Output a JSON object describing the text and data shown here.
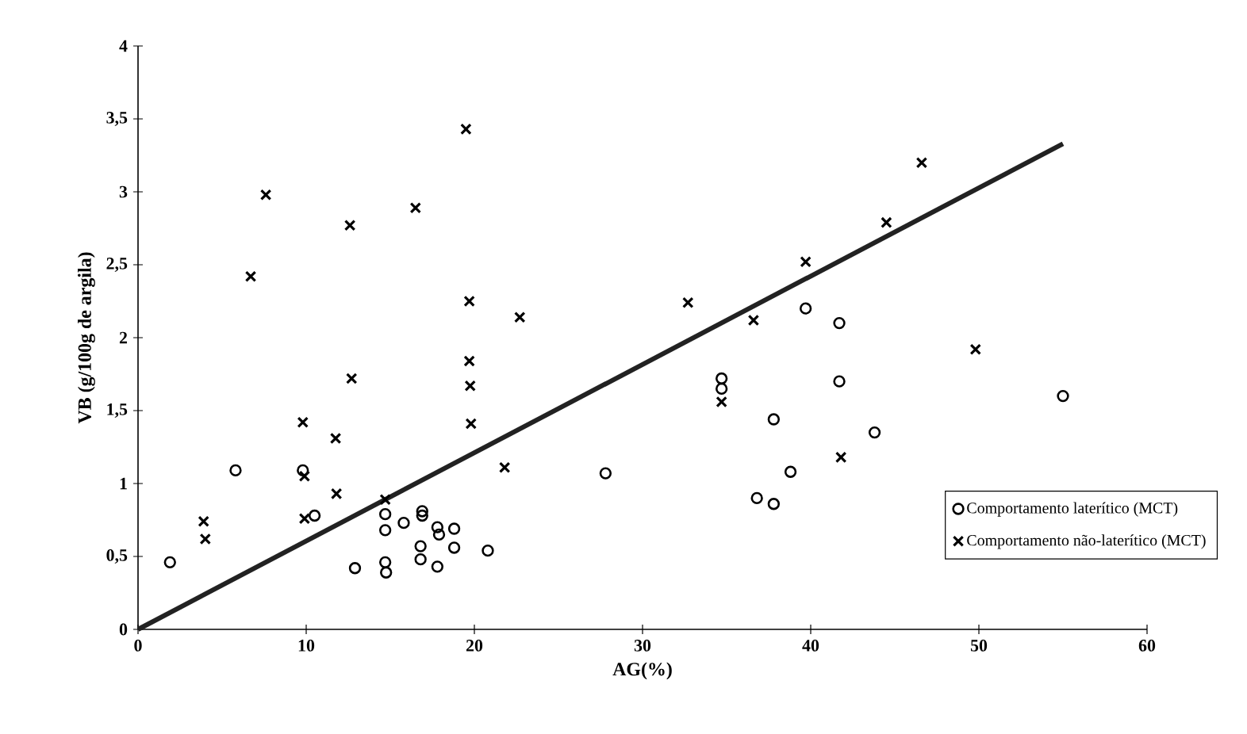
{
  "chart_data": {
    "type": "scatter",
    "xlabel": "AG(%)",
    "ylabel": "VB (g/100g de argila)",
    "xlim": [
      0,
      60
    ],
    "xticks": [
      0,
      10,
      20,
      30,
      40,
      50,
      60
    ],
    "ylim": [
      0,
      4
    ],
    "yticks": [
      0,
      {
        "value": 0.5,
        "label": "0,5"
      },
      1,
      {
        "value": 1.5,
        "label": "1,5"
      },
      2,
      {
        "value": 2.5,
        "label": "2,5"
      },
      3,
      {
        "value": 3.5,
        "label": "3,5"
      },
      4
    ],
    "grid": false,
    "legend": "bottom right",
    "series": [
      {
        "name": "Comportamento laterítico (MCT)",
        "color": "#000000",
        "marker": "circle",
        "x": [
          1.9,
          5.8,
          9.8,
          10.5,
          12.9,
          14.7,
          14.7,
          14.7,
          14.75,
          15.8,
          16.9,
          16.9,
          16.8,
          16.8,
          17.8,
          17.9,
          17.8,
          18.8,
          18.8,
          20.8,
          27.8,
          34.7,
          34.7,
          36.8,
          37.8,
          37.8,
          38.8,
          39.7,
          41.7,
          41.7,
          43.8,
          55
        ],
        "values": [
          0.46,
          1.09,
          1.09,
          0.78,
          0.42,
          0.79,
          0.68,
          0.46,
          0.39,
          0.73,
          0.81,
          0.78,
          0.57,
          0.48,
          0.7,
          0.65,
          0.43,
          0.69,
          0.56,
          0.54,
          1.07,
          1.72,
          1.65,
          0.9,
          0.86,
          1.44,
          1.08,
          2.2,
          2.1,
          1.7,
          1.35,
          1.6
        ]
      },
      {
        "name": "Comportamento não-laterítico (MCT)",
        "color": "#000000",
        "marker": "cross",
        "x": [
          3.9,
          4.0,
          6.7,
          7.6,
          9.8,
          9.9,
          9.9,
          11.75,
          11.8,
          12.6,
          12.7,
          14.7,
          16.5,
          19.5,
          19.7,
          19.7,
          19.75,
          19.8,
          21.8,
          22.7,
          32.7,
          34.7,
          36.6,
          39.7,
          41.8,
          44.5,
          46.6,
          49.8
        ],
        "values": [
          0.74,
          0.62,
          2.42,
          2.98,
          1.42,
          1.05,
          0.76,
          1.31,
          0.93,
          2.77,
          1.72,
          0.89,
          2.89,
          3.43,
          2.25,
          1.84,
          1.67,
          1.41,
          1.11,
          2.14,
          2.24,
          1.56,
          2.12,
          2.52,
          1.18,
          2.79,
          3.2,
          1.92
        ]
      },
      {
        "type": "line",
        "color": "#222222",
        "line_style": "solid",
        "x": [
          0,
          55
        ],
        "values": [
          0,
          3.33
        ]
      }
    ]
  }
}
